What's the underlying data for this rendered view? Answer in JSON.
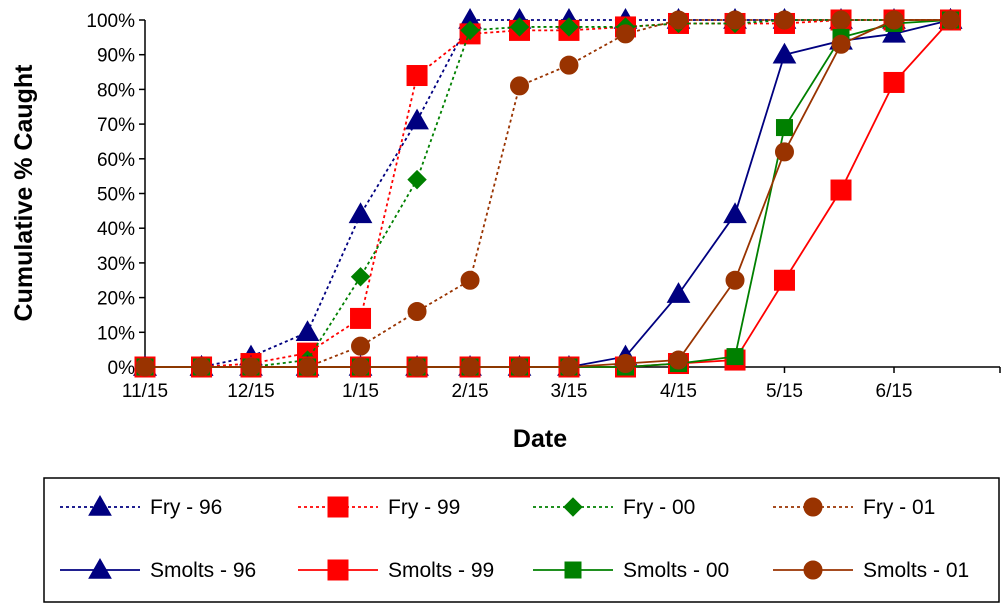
{
  "chart_data": {
    "type": "line",
    "title": "",
    "xlabel": "Date",
    "ylabel": "Cumulative % Caught",
    "x_ticks": [
      "11/15",
      "12/15",
      "1/15",
      "2/15",
      "3/15",
      "4/15",
      "5/15",
      "6/15"
    ],
    "x_tick_dates": [
      "11/15",
      "12/15",
      "1/15",
      "2/15",
      "3/15",
      "4/15",
      "5/15",
      "6/15"
    ],
    "y_ticks": [
      "0%",
      "10%",
      "20%",
      "30%",
      "40%",
      "50%",
      "60%",
      "70%",
      "80%",
      "90%",
      "100%"
    ],
    "ylim": [
      0,
      100
    ],
    "grid": false,
    "legend_position": "bottom",
    "series": [
      {
        "name": "Fry - 96",
        "color": "#000080",
        "marker": "triangle",
        "line_style": "dotted",
        "points": [
          [
            "11/15",
            0
          ],
          [
            "12/1",
            0
          ],
          [
            "12/15",
            3
          ],
          [
            "12/31",
            10
          ],
          [
            "1/15",
            44
          ],
          [
            "1/31",
            71
          ],
          [
            "2/15",
            100
          ],
          [
            "3/1",
            100
          ],
          [
            "3/15",
            100
          ],
          [
            "3/31",
            100
          ],
          [
            "4/15",
            100
          ],
          [
            "5/1",
            100
          ],
          [
            "5/15",
            100
          ],
          [
            "5/31",
            100
          ],
          [
            "6/15",
            100
          ],
          [
            "7/1",
            100
          ]
        ]
      },
      {
        "name": "Fry - 99",
        "color": "#ff0000",
        "marker": "square",
        "line_style": "dotted",
        "points": [
          [
            "11/15",
            0
          ],
          [
            "12/1",
            0
          ],
          [
            "12/15",
            1
          ],
          [
            "12/31",
            4
          ],
          [
            "1/15",
            14
          ],
          [
            "1/31",
            84
          ],
          [
            "2/15",
            96
          ],
          [
            "3/1",
            97
          ],
          [
            "3/15",
            97
          ],
          [
            "3/31",
            98
          ],
          [
            "4/15",
            99
          ],
          [
            "5/1",
            99
          ],
          [
            "5/15",
            99
          ],
          [
            "5/31",
            100
          ],
          [
            "6/15",
            100
          ],
          [
            "7/1",
            100
          ]
        ]
      },
      {
        "name": "Fry - 00",
        "color": "#008000",
        "marker": "diamond",
        "line_style": "dotted",
        "points": [
          [
            "11/15",
            0
          ],
          [
            "12/1",
            0
          ],
          [
            "12/15",
            0
          ],
          [
            "12/31",
            2
          ],
          [
            "1/15",
            26
          ],
          [
            "1/31",
            54
          ],
          [
            "2/15",
            97
          ],
          [
            "3/1",
            98
          ],
          [
            "3/15",
            98
          ],
          [
            "3/31",
            98
          ],
          [
            "4/15",
            99
          ],
          [
            "5/1",
            99
          ],
          [
            "5/15",
            100
          ],
          [
            "5/31",
            100
          ],
          [
            "6/15",
            100
          ],
          [
            "7/1",
            100
          ]
        ]
      },
      {
        "name": "Fry - 01",
        "color": "#993300",
        "marker": "circle",
        "line_style": "dotted",
        "points": [
          [
            "11/15",
            0
          ],
          [
            "12/1",
            0
          ],
          [
            "12/15",
            0
          ],
          [
            "12/31",
            0
          ],
          [
            "1/15",
            6
          ],
          [
            "1/31",
            16
          ],
          [
            "2/15",
            25
          ],
          [
            "3/1",
            81
          ],
          [
            "3/15",
            87
          ],
          [
            "3/31",
            96
          ],
          [
            "4/15",
            100
          ],
          [
            "5/1",
            100
          ],
          [
            "5/15",
            100
          ],
          [
            "5/31",
            100
          ],
          [
            "6/15",
            100
          ],
          [
            "7/1",
            100
          ]
        ]
      },
      {
        "name": "Smolts - 96",
        "color": "#000080",
        "marker": "triangle",
        "line_style": "solid",
        "points": [
          [
            "11/15",
            0
          ],
          [
            "12/1",
            0
          ],
          [
            "12/15",
            0
          ],
          [
            "12/31",
            0
          ],
          [
            "1/15",
            0
          ],
          [
            "1/31",
            0
          ],
          [
            "2/15",
            0
          ],
          [
            "3/1",
            0
          ],
          [
            "3/15",
            0
          ],
          [
            "3/31",
            3
          ],
          [
            "4/15",
            21
          ],
          [
            "5/1",
            44
          ],
          [
            "5/15",
            90
          ],
          [
            "5/31",
            94
          ],
          [
            "6/15",
            96
          ],
          [
            "7/1",
            100
          ]
        ]
      },
      {
        "name": "Smolts - 99",
        "color": "#ff0000",
        "marker": "square",
        "line_style": "solid",
        "points": [
          [
            "11/15",
            0
          ],
          [
            "12/1",
            0
          ],
          [
            "12/15",
            0
          ],
          [
            "12/31",
            0
          ],
          [
            "1/15",
            0
          ],
          [
            "1/31",
            0
          ],
          [
            "2/15",
            0
          ],
          [
            "3/1",
            0
          ],
          [
            "3/15",
            0
          ],
          [
            "3/31",
            0
          ],
          [
            "4/15",
            1
          ],
          [
            "5/1",
            2
          ],
          [
            "5/15",
            25
          ],
          [
            "5/31",
            51
          ],
          [
            "6/15",
            82
          ],
          [
            "7/1",
            100
          ]
        ]
      },
      {
        "name": "Smolts - 00",
        "color": "#008000",
        "marker": "square",
        "line_style": "solid",
        "points": [
          [
            "11/15",
            0
          ],
          [
            "12/1",
            0
          ],
          [
            "12/15",
            0
          ],
          [
            "12/31",
            0
          ],
          [
            "1/15",
            0
          ],
          [
            "1/31",
            0
          ],
          [
            "2/15",
            0
          ],
          [
            "3/1",
            0
          ],
          [
            "3/15",
            0
          ],
          [
            "3/31",
            0
          ],
          [
            "4/15",
            1
          ],
          [
            "5/1",
            3
          ],
          [
            "5/15",
            69
          ],
          [
            "5/31",
            95
          ],
          [
            "6/15",
            99
          ],
          [
            "7/1",
            100
          ]
        ]
      },
      {
        "name": "Smolts - 01",
        "color": "#993300",
        "marker": "circle",
        "line_style": "solid",
        "points": [
          [
            "11/15",
            0
          ],
          [
            "12/1",
            0
          ],
          [
            "12/15",
            0
          ],
          [
            "12/31",
            0
          ],
          [
            "1/15",
            0
          ],
          [
            "1/31",
            0
          ],
          [
            "2/15",
            0
          ],
          [
            "3/1",
            0
          ],
          [
            "3/15",
            0
          ],
          [
            "3/31",
            1
          ],
          [
            "4/15",
            2
          ],
          [
            "5/1",
            25
          ],
          [
            "5/15",
            62
          ],
          [
            "5/31",
            93
          ],
          [
            "6/15",
            100
          ],
          [
            "7/1",
            100
          ]
        ]
      }
    ]
  }
}
